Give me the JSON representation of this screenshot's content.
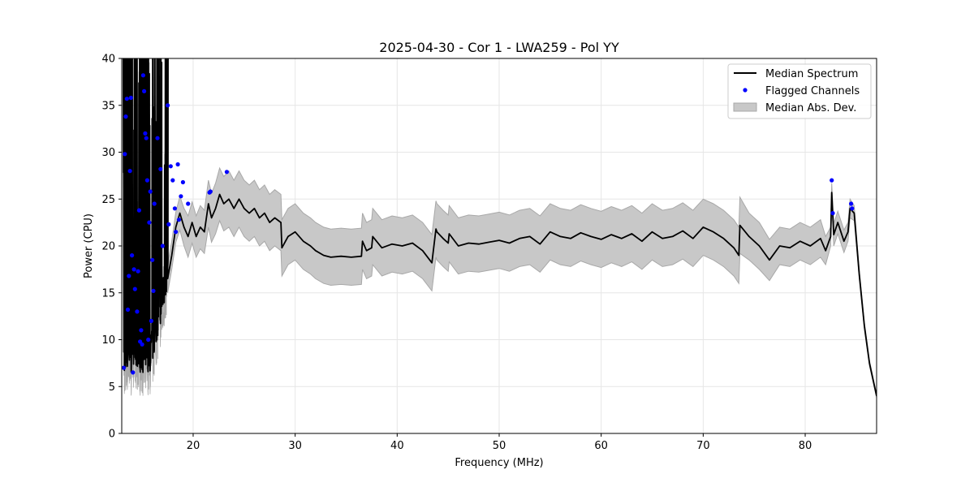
{
  "chart_data": {
    "type": "line",
    "title": "2025-04-30 - Cor 1 - LWA259 - Pol YY",
    "xlabel": "Frequency (MHz)",
    "ylabel": "Power (CPU)",
    "xlim": [
      13.0,
      87.0
    ],
    "ylim": [
      0,
      40
    ],
    "xticks": [
      20,
      30,
      40,
      50,
      60,
      70,
      80
    ],
    "yticks": [
      0,
      5,
      10,
      15,
      20,
      25,
      30,
      35,
      40
    ],
    "grid": true,
    "legend_position": "top-right",
    "legend": {
      "median": "Median Spectrum",
      "flagged": "Flagged Channels",
      "mad": "Median Abs. Dev."
    },
    "colors": {
      "median": "#000000",
      "flagged": "#0000ff",
      "mad_fill": "#c8c8c8",
      "mad_edge": "#a8a8a8",
      "grid": "#e6e6e6"
    },
    "series": [
      {
        "name": "Median Spectrum",
        "x": [
          17.5,
          17.9,
          18.3,
          18.7,
          19.1,
          19.5,
          19.9,
          20.3,
          20.7,
          21.1,
          21.5,
          21.8,
          22.2,
          22.6,
          23.0,
          23.5,
          24.0,
          24.5,
          25.0,
          25.5,
          26.0,
          26.5,
          27.0,
          27.5,
          28.0,
          28.6,
          28.7,
          29.3,
          30.0,
          30.8,
          31.5,
          32.0,
          32.8,
          33.5,
          34.5,
          35.5,
          36.5,
          36.6,
          37.0,
          37.5,
          37.6,
          38.5,
          39.5,
          40.5,
          41.5,
          42.5,
          43.4,
          43.8,
          43.9,
          44.5,
          45.0,
          45.1,
          46.0,
          47.0,
          48.0,
          49.0,
          50.0,
          51.0,
          52.0,
          53.0,
          54.0,
          55.0,
          56.0,
          57.0,
          58.0,
          59.0,
          60.0,
          61.0,
          62.0,
          63.0,
          64.0,
          65.0,
          66.0,
          67.0,
          68.0,
          69.0,
          70.0,
          71.0,
          72.0,
          73.0,
          73.5,
          73.6,
          74.5,
          75.5,
          76.5,
          77.5,
          78.5,
          79.5,
          80.5,
          81.5,
          82.0,
          82.5,
          82.6,
          82.8,
          83.2,
          83.8,
          84.2,
          84.4,
          84.8,
          85.3,
          85.8,
          86.3,
          87.0
        ],
        "y": [
          16.5,
          19.0,
          22.0,
          23.5,
          22.0,
          21.0,
          22.5,
          21.0,
          22.0,
          21.5,
          24.5,
          23.0,
          24.0,
          25.5,
          24.5,
          25.0,
          24.0,
          25.0,
          24.0,
          23.5,
          24.0,
          23.0,
          23.5,
          22.5,
          23.0,
          22.5,
          19.8,
          21.0,
          21.5,
          20.5,
          20.0,
          19.5,
          19.0,
          18.8,
          18.9,
          18.8,
          18.9,
          20.5,
          19.5,
          19.8,
          21.0,
          19.8,
          20.2,
          20.0,
          20.3,
          19.5,
          18.2,
          21.8,
          21.5,
          20.8,
          20.3,
          21.3,
          20.0,
          20.3,
          20.2,
          20.4,
          20.6,
          20.3,
          20.8,
          21.0,
          20.2,
          21.5,
          21.0,
          20.8,
          21.4,
          21.0,
          20.7,
          21.2,
          20.8,
          21.3,
          20.5,
          21.5,
          20.8,
          21.0,
          21.6,
          20.8,
          22.0,
          21.5,
          20.8,
          19.8,
          19.0,
          22.2,
          21.0,
          20.0,
          18.5,
          20.0,
          19.8,
          20.5,
          20.0,
          20.8,
          19.5,
          21.0,
          25.7,
          21.2,
          22.5,
          20.5,
          21.5,
          24.0,
          23.5,
          17.0,
          11.5,
          7.5,
          4.0
        ],
        "mad": [
          1.5,
          1.5,
          1.6,
          1.8,
          2.0,
          2.2,
          2.2,
          2.2,
          2.3,
          2.3,
          2.5,
          2.6,
          2.7,
          2.8,
          2.9,
          3.0,
          3.0,
          3.0,
          3.0,
          3.0,
          3.0,
          3.0,
          3.0,
          3.0,
          3.0,
          3.0,
          3.0,
          3.0,
          3.0,
          3.0,
          3.0,
          3.0,
          3.0,
          3.0,
          3.0,
          3.0,
          3.0,
          3.0,
          3.0,
          3.0,
          3.0,
          3.0,
          3.0,
          3.0,
          3.0,
          3.0,
          3.0,
          3.0,
          3.0,
          3.0,
          3.0,
          3.0,
          3.0,
          3.0,
          3.0,
          3.0,
          3.0,
          3.0,
          3.0,
          3.0,
          3.0,
          3.0,
          3.0,
          3.0,
          3.0,
          3.0,
          3.0,
          3.0,
          3.0,
          3.0,
          3.0,
          3.0,
          3.0,
          3.0,
          3.0,
          3.0,
          3.0,
          3.0,
          3.0,
          3.0,
          3.0,
          3.0,
          2.5,
          2.5,
          2.2,
          2.0,
          2.0,
          2.0,
          2.0,
          2.0,
          1.5,
          1.0,
          1.0,
          1.2,
          1.2,
          1.2,
          1.0,
          1.0,
          0.8,
          0.5,
          0.4,
          0.3,
          0.2
        ]
      }
    ],
    "flagged_channels": {
      "x": [
        13.2,
        13.3,
        13.4,
        13.5,
        13.6,
        13.7,
        13.8,
        13.9,
        14.0,
        14.1,
        14.2,
        14.3,
        14.5,
        14.6,
        14.7,
        14.8,
        14.9,
        15.0,
        15.1,
        15.2,
        15.3,
        15.4,
        15.5,
        15.6,
        15.7,
        15.8,
        15.9,
        16.0,
        16.1,
        16.2,
        16.5,
        16.8,
        17.0,
        17.5,
        17.6,
        17.8,
        18.0,
        18.2,
        18.3,
        18.5,
        18.6,
        18.8,
        19.0,
        19.5,
        21.6,
        21.7,
        23.3,
        82.6,
        82.7,
        84.5,
        84.6
      ],
      "y": [
        7.0,
        29.8,
        33.8,
        35.7,
        13.2,
        16.8,
        28.0,
        35.8,
        19.0,
        6.5,
        17.5,
        15.4,
        13.0,
        17.3,
        23.8,
        9.8,
        11.0,
        9.5,
        38.2,
        36.5,
        32.0,
        31.5,
        27.0,
        10.0,
        22.5,
        25.8,
        12.0,
        18.5,
        15.2,
        24.5,
        31.5,
        28.2,
        20.0,
        35.0,
        22.3,
        28.5,
        27.0,
        24.0,
        21.5,
        28.7,
        22.8,
        25.3,
        26.8,
        24.5,
        25.7,
        25.8,
        27.9,
        27.0,
        23.5,
        24.5,
        24.0
      ]
    }
  }
}
